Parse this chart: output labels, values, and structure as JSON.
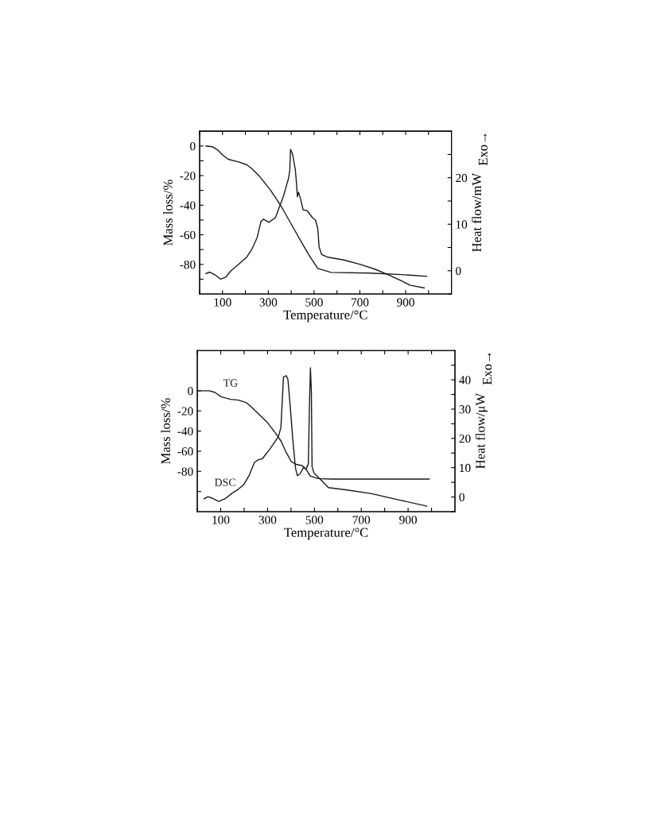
{
  "chart_data": [
    {
      "type": "line",
      "xlabel": "Temperature/°C",
      "ylabel": "Mass loss/%",
      "y2label": "Heat flow/mW",
      "annotations": [
        "Exo→"
      ],
      "xlim": [
        0,
        1100
      ],
      "xticks": [
        {
          "value": 0,
          "label": null
        },
        100,
        {
          "value": 200,
          "label": null
        },
        300,
        {
          "value": 400,
          "label": null
        },
        500,
        {
          "value": 600,
          "label": null
        },
        700,
        {
          "value": 800,
          "label": null
        },
        900,
        {
          "value": 1000,
          "label": null
        }
      ],
      "ylim": [
        -100,
        10
      ],
      "yticks": [
        {
          "value": -90,
          "label": null
        },
        -80,
        {
          "value": -70,
          "label": null
        },
        -60,
        {
          "value": -50,
          "label": null
        },
        -40,
        {
          "value": -30,
          "label": null
        },
        -20,
        {
          "value": -10,
          "label": null
        },
        0
      ],
      "y2lim": [
        -5,
        30
      ],
      "y2ticks": [
        {
          "value": -5,
          "label": null
        },
        0,
        {
          "value": 5,
          "label": null
        },
        10,
        {
          "value": 15,
          "label": null
        },
        20,
        {
          "value": 25,
          "label": null
        }
      ],
      "grid": false,
      "legend": false,
      "series": [
        {
          "color": "#1a1a1a",
          "x": [
            28,
            56,
            79,
            102,
            125,
            171,
            205,
            228,
            263,
            309,
            355,
            401,
            447,
            481,
            516,
            574,
            746,
            918,
            992
          ],
          "values": [
            0,
            -0.5,
            -2.7,
            -6.3,
            -9,
            -10.8,
            -12.6,
            -15.3,
            -20.7,
            -29.7,
            -40.4,
            -53,
            -65.6,
            -74.6,
            -82.7,
            -85.4,
            -85.9,
            -87.2,
            -88.1
          ]
        },
        {
          "color": "#1a1a1a",
          "axis": "y2",
          "x": [
            28,
            45,
            68,
            91,
            114,
            137,
            171,
            205,
            228,
            251,
            268,
            279,
            302,
            331,
            366,
            389,
            394,
            397,
            406,
            418,
            423,
            427,
            432,
            441,
            452,
            470,
            493,
            506,
            516,
            522,
            533,
            561,
            630,
            700,
            768,
            826,
            883,
            918,
            981
          ],
          "values": [
            -0.6,
            -0.3,
            -0.9,
            -1.8,
            -1.4,
            0,
            1.4,
            2.9,
            4.6,
            7.1,
            10.6,
            11.1,
            10.4,
            11.4,
            16,
            20,
            21.7,
            26.1,
            25.1,
            21.7,
            18.9,
            15.9,
            16.9,
            15.4,
            13.1,
            12.9,
            11.4,
            10.9,
            9.1,
            5.1,
            3.5,
            2.9,
            2.3,
            1.4,
            0.3,
            -0.9,
            -2.2,
            -3.1,
            -3.7
          ]
        }
      ]
    },
    {
      "type": "line",
      "xlabel": "Temperature/°C",
      "ylabel": "Mass loss/%",
      "y2label": "Heat flow/μW",
      "annotations": [
        "Exo→"
      ],
      "xlim": [
        0,
        1100
      ],
      "xticks": [
        {
          "value": 0,
          "label": null
        },
        100,
        {
          "value": 200,
          "label": null
        },
        300,
        {
          "value": 400,
          "label": null
        },
        500,
        {
          "value": 600,
          "label": null
        },
        700,
        {
          "value": 800,
          "label": null
        },
        900,
        {
          "value": 1000,
          "label": null
        }
      ],
      "ylim": [
        -120,
        40
      ],
      "yticks": [
        {
          "value": -100,
          "label": null
        },
        -80,
        -60,
        -40,
        -20,
        0
      ],
      "y2lim": [
        -5,
        50
      ],
      "y2ticks": [
        {
          "value": -5,
          "label": null
        },
        0,
        {
          "value": 5,
          "label": null
        },
        10,
        {
          "value": 15,
          "label": null
        },
        20,
        {
          "value": 25,
          "label": null
        },
        30,
        {
          "value": 35,
          "label": null
        },
        40,
        {
          "value": 45,
          "label": null
        }
      ],
      "grid": false,
      "legend": false,
      "series": [
        {
          "name": "TG",
          "color": "#1a1a1a",
          "x": [
            1,
            51,
            74,
            102,
            142,
            176,
            210,
            232,
            266,
            300,
            334,
            357,
            380,
            402,
            425,
            448,
            465,
            482,
            516,
            572,
            990
          ],
          "values": [
            0,
            0,
            -1.5,
            -5.9,
            -8.5,
            -9.3,
            -11.9,
            -16.3,
            -24,
            -31.7,
            -42,
            -49.8,
            -61.4,
            -70.5,
            -73.3,
            -74.3,
            -78.2,
            -84.6,
            -87.2,
            -87.7,
            -87.7
          ]
        },
        {
          "name": "DSC",
          "color": "#1a1a1a",
          "axis": "y2",
          "x": [
            29,
            46,
            63,
            91,
            119,
            147,
            176,
            198,
            221,
            244,
            261,
            278,
            312,
            346,
            357,
            362,
            368,
            380,
            387,
            396,
            408,
            419,
            427,
            438,
            453,
            465,
            474,
            479,
            483,
            487,
            490,
            498,
            526,
            560,
            628,
            741,
            855,
            979
          ],
          "values": [
            -0.6,
            0.1,
            -0.4,
            -1.5,
            -0.6,
            1.2,
            2.7,
            4.2,
            7.3,
            11.8,
            12.7,
            13.1,
            16.6,
            20.6,
            23.7,
            31.7,
            41,
            41.4,
            40.1,
            31.7,
            19.3,
            10,
            7.3,
            7.8,
            10,
            9.6,
            11.3,
            31.7,
            44.1,
            36.1,
            10.4,
            8.2,
            6,
            3.2,
            2.5,
            1.2,
            -0.9,
            -3.1
          ]
        }
      ]
    }
  ]
}
